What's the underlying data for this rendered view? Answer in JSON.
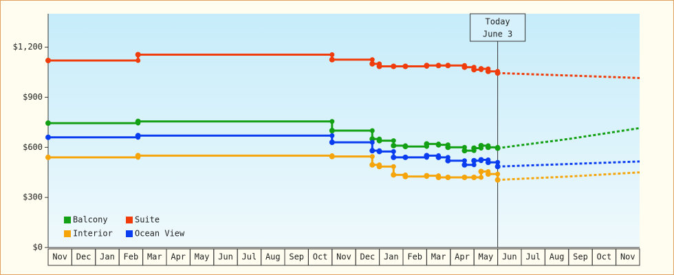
{
  "chart_data": {
    "type": "step-line",
    "categories": [
      "Nov",
      "Dec",
      "Jan",
      "Feb",
      "Mar",
      "Apr",
      "May",
      "Jun",
      "Jul",
      "Aug",
      "Sep",
      "Oct",
      "Nov",
      "Dec",
      "Jan",
      "Feb",
      "Mar",
      "Apr",
      "May",
      "Jun",
      "Jul",
      "Aug",
      "Sep",
      "Oct",
      "Nov"
    ],
    "xlim": [
      0,
      25
    ],
    "ylim": [
      0,
      1400
    ],
    "yticks": [
      {
        "value": 0,
        "label": "$0"
      },
      {
        "value": 300,
        "label": "$300"
      },
      {
        "value": 600,
        "label": "$600"
      },
      {
        "value": 900,
        "label": "$900"
      },
      {
        "value": 1200,
        "label": "$1,200"
      }
    ],
    "annotation": {
      "x": 19,
      "lines": [
        "Today",
        "June 3"
      ]
    },
    "x": [
      0,
      3.8,
      12,
      13.7,
      14,
      14.6,
      15.1,
      16,
      16.5,
      16.9,
      17.6,
      18,
      18.3,
      18.6,
      19
    ],
    "forecast_x": [
      19,
      22,
      25
    ],
    "series": [
      {
        "name": "Balcony",
        "color": "#14a014",
        "values": [
          745,
          755,
          700,
          650,
          640,
          610,
          605,
          620,
          615,
          600,
          580,
          595,
          610,
          600,
          595
        ],
        "forecast": [
          595,
          650,
          715
        ]
      },
      {
        "name": "Suite",
        "color": "#f03c0a",
        "values": [
          1120,
          1155,
          1125,
          1100,
          1085,
          1085,
          1085,
          1090,
          1090,
          1090,
          1080,
          1065,
          1070,
          1055,
          1045
        ],
        "forecast": [
          1045,
          1030,
          1015
        ]
      },
      {
        "name": "Interior",
        "color": "#f5a50a",
        "values": [
          540,
          550,
          545,
          495,
          485,
          435,
          425,
          430,
          420,
          420,
          420,
          420,
          455,
          440,
          405
        ],
        "forecast": [
          405,
          425,
          450
        ]
      },
      {
        "name": "Ocean View",
        "color": "#0a3cf0",
        "values": [
          660,
          670,
          630,
          580,
          575,
          540,
          540,
          550,
          540,
          520,
          495,
          520,
          525,
          510,
          485
        ],
        "forecast": [
          485,
          500,
          515
        ]
      }
    ]
  }
}
